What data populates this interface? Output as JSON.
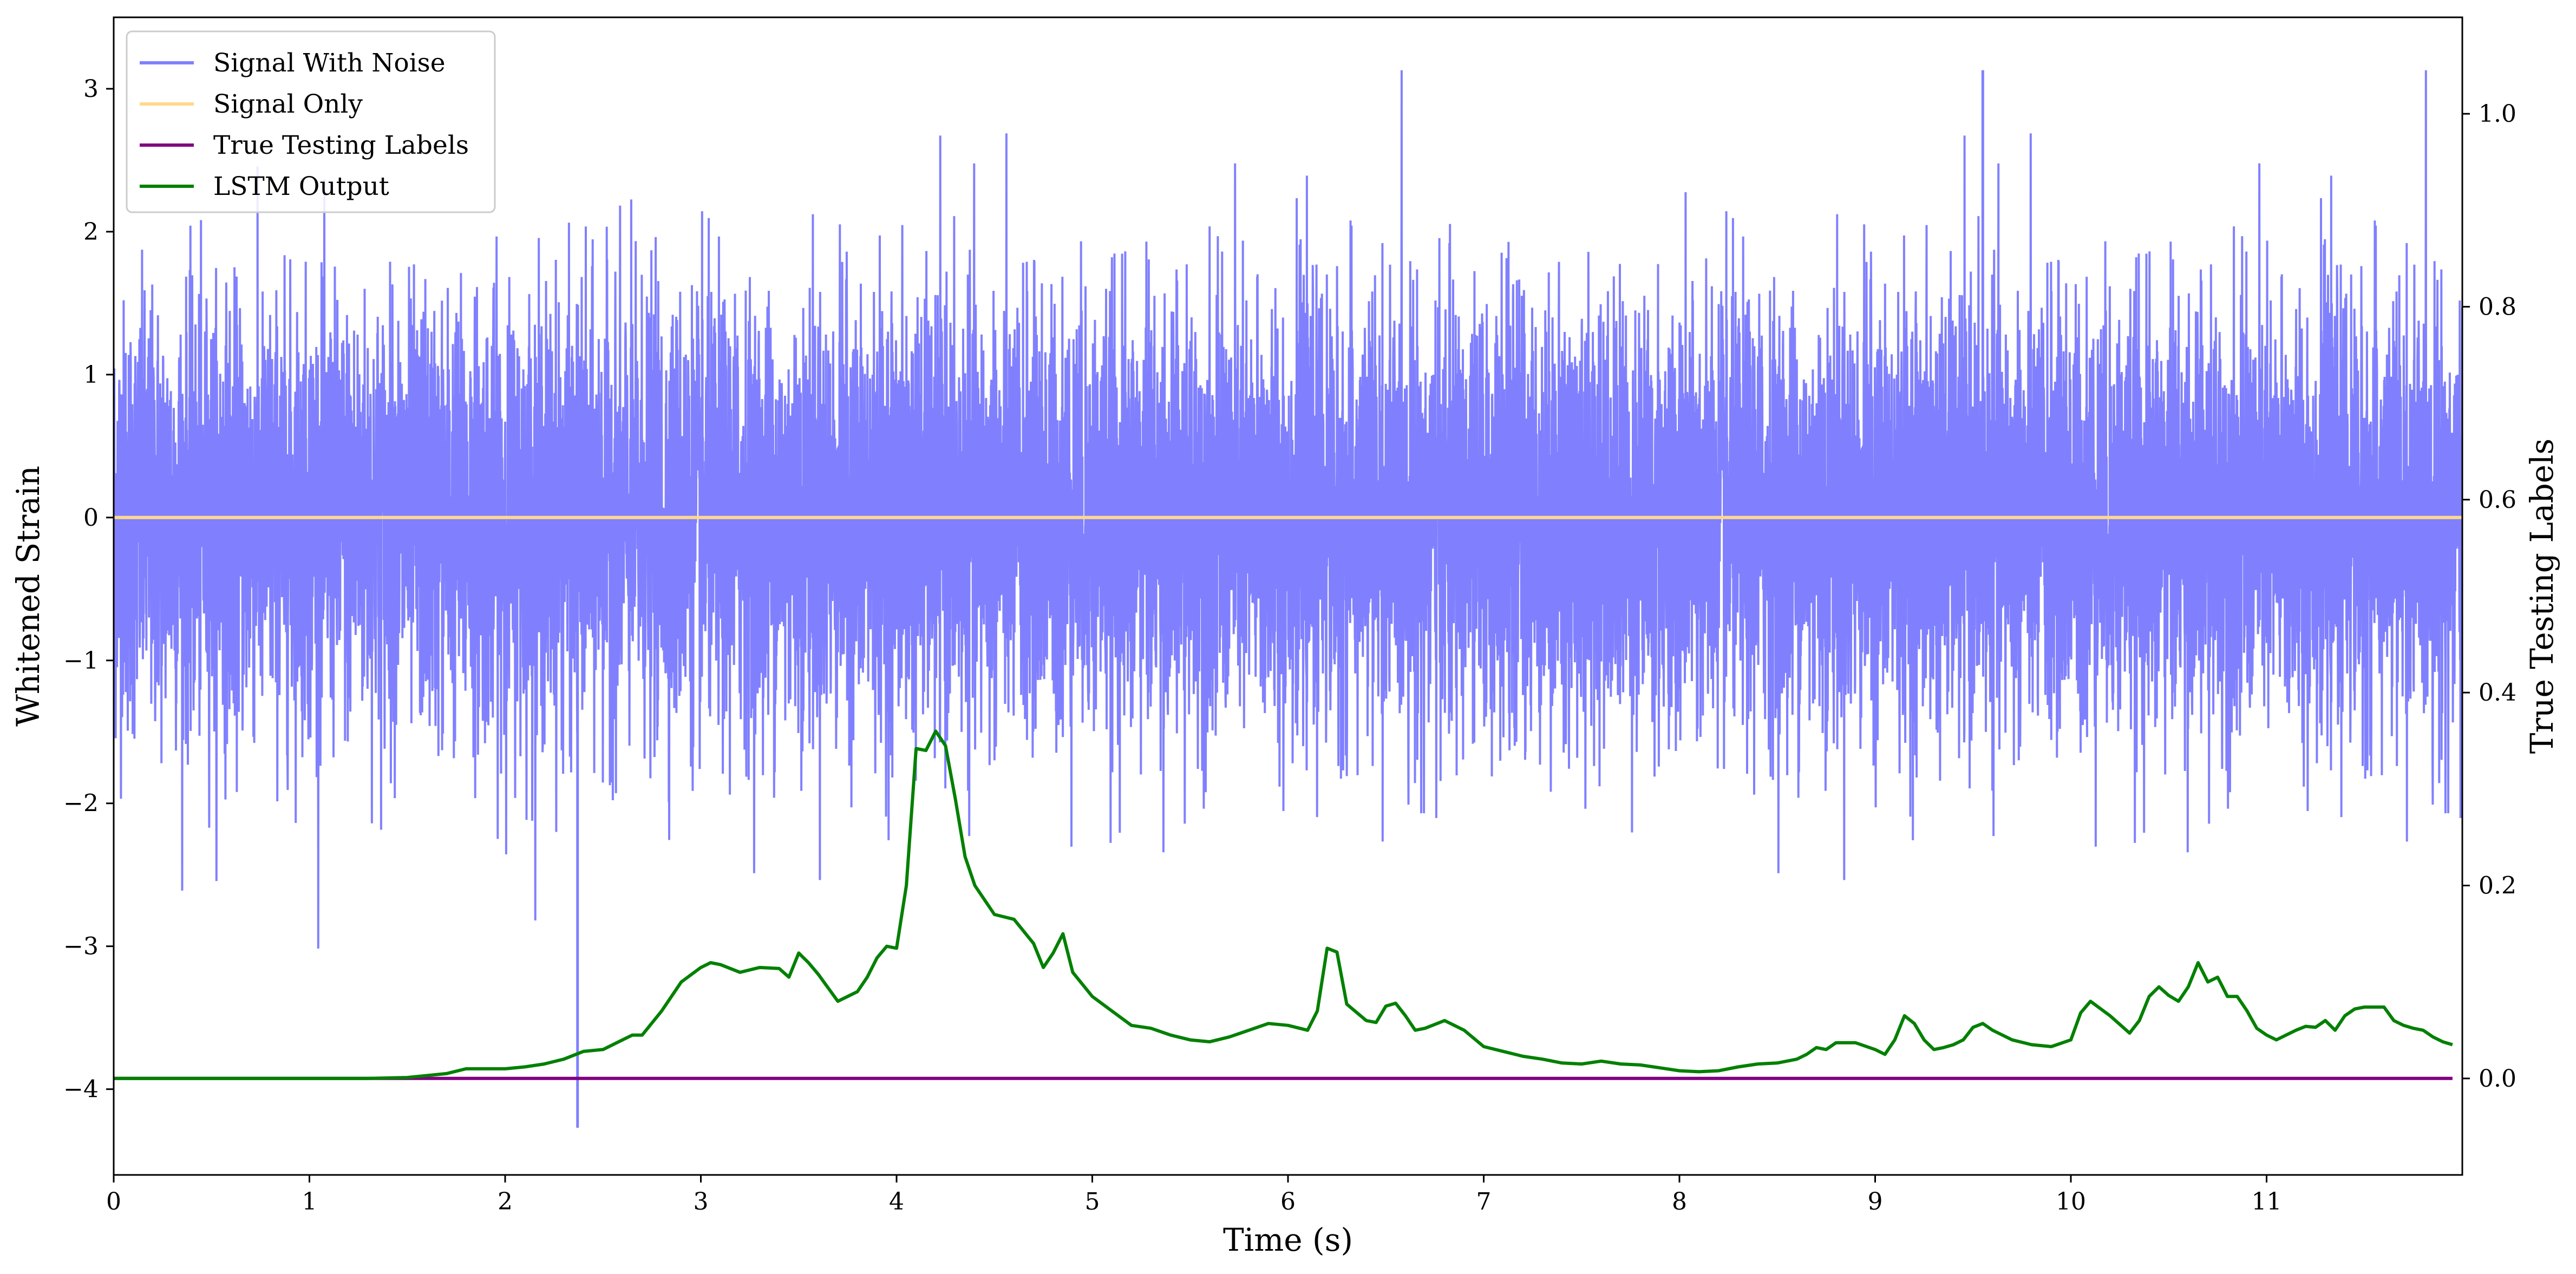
{
  "chart_data": {
    "type": "line",
    "title": "",
    "xlabel": "Time (s)",
    "ylabel_left": "Whitened Strain",
    "ylabel_right": "True Testing Labels",
    "xlim": [
      0,
      12
    ],
    "ylim_left": [
      -4.6,
      3.5
    ],
    "ylim_right": [
      -0.1,
      1.1
    ],
    "xticks": [
      0,
      1,
      2,
      3,
      4,
      5,
      6,
      7,
      8,
      9,
      10,
      11
    ],
    "xtick_labels": [
      "0",
      "1",
      "2",
      "3",
      "4",
      "5",
      "6",
      "7",
      "8",
      "9",
      "10",
      "11"
    ],
    "yticks_left": [
      -4,
      -3,
      -2,
      -1,
      0,
      1,
      2,
      3
    ],
    "ytick_labels_left": [
      "−4",
      "−3",
      "−2",
      "−1",
      "0",
      "1",
      "2",
      "3"
    ],
    "yticks_right": [
      0.0,
      0.2,
      0.4,
      0.6,
      0.8,
      1.0
    ],
    "ytick_labels_right": [
      "0.0",
      "0.2",
      "0.4",
      "0.6",
      "0.8",
      "1.0"
    ],
    "grid": false,
    "legend_position": "top-left",
    "legend": [
      {
        "label": "Signal With Noise",
        "color": "#8080ff"
      },
      {
        "label": "Signal Only",
        "color": "#ffd88a"
      },
      {
        "label": "True Testing Labels",
        "color": "#800080"
      },
      {
        "label": "LSTM Output",
        "color": "#008000"
      }
    ],
    "series": [
      {
        "name": "Signal With Noise",
        "axis": "left",
        "color": "#8080ff",
        "description_kind": "dense_noise",
        "x_range": [
          0,
          12
        ],
        "mean": 0,
        "std": 0.75,
        "min": -4.27,
        "max": 3.13
      },
      {
        "name": "Signal Only",
        "axis": "left",
        "color": "#ffd88a",
        "x": [
          0,
          12
        ],
        "y": [
          0,
          0
        ]
      },
      {
        "name": "True Testing Labels",
        "axis": "right",
        "color": "#800080",
        "x": [
          0,
          11.95
        ],
        "y": [
          0,
          0
        ]
      },
      {
        "name": "LSTM Output",
        "axis": "right",
        "color": "#008000",
        "x": [
          0,
          0.5,
          1.0,
          1.3,
          1.5,
          1.7,
          1.8,
          2.0,
          2.1,
          2.2,
          2.3,
          2.4,
          2.5,
          2.6,
          2.65,
          2.7,
          2.8,
          2.9,
          3.0,
          3.05,
          3.1,
          3.2,
          3.3,
          3.4,
          3.45,
          3.5,
          3.55,
          3.6,
          3.7,
          3.8,
          3.85,
          3.9,
          3.95,
          4.0,
          4.05,
          4.1,
          4.15,
          4.2,
          4.25,
          4.3,
          4.35,
          4.4,
          4.5,
          4.6,
          4.7,
          4.75,
          4.8,
          4.85,
          4.9,
          5.0,
          5.1,
          5.2,
          5.3,
          5.4,
          5.5,
          5.6,
          5.7,
          5.8,
          5.9,
          6.0,
          6.1,
          6.15,
          6.2,
          6.25,
          6.3,
          6.4,
          6.45,
          6.5,
          6.55,
          6.6,
          6.65,
          6.7,
          6.8,
          6.9,
          7.0,
          7.1,
          7.2,
          7.3,
          7.4,
          7.5,
          7.6,
          7.7,
          7.8,
          7.9,
          8.0,
          8.1,
          8.2,
          8.3,
          8.4,
          8.5,
          8.6,
          8.65,
          8.7,
          8.75,
          8.8,
          8.9,
          9.0,
          9.05,
          9.1,
          9.15,
          9.2,
          9.25,
          9.3,
          9.35,
          9.4,
          9.45,
          9.5,
          9.55,
          9.6,
          9.7,
          9.8,
          9.9,
          10.0,
          10.05,
          10.1,
          10.2,
          10.3,
          10.35,
          10.4,
          10.45,
          10.5,
          10.55,
          10.6,
          10.65,
          10.7,
          10.75,
          10.8,
          10.85,
          10.9,
          10.95,
          11.0,
          11.05,
          11.1,
          11.15,
          11.2,
          11.25,
          11.3,
          11.35,
          11.4,
          11.45,
          11.5,
          11.6,
          11.65,
          11.7,
          11.75,
          11.8,
          11.85,
          11.9,
          11.95
        ],
        "y": [
          0.0,
          0.0,
          0.0,
          0.0,
          0.001,
          0.005,
          0.01,
          0.01,
          0.012,
          0.015,
          0.02,
          0.028,
          0.03,
          0.04,
          0.045,
          0.045,
          0.07,
          0.1,
          0.115,
          0.12,
          0.118,
          0.11,
          0.115,
          0.114,
          0.105,
          0.13,
          0.12,
          0.108,
          0.08,
          0.09,
          0.105,
          0.125,
          0.137,
          0.135,
          0.2,
          0.342,
          0.34,
          0.36,
          0.345,
          0.29,
          0.23,
          0.2,
          0.17,
          0.165,
          0.14,
          0.115,
          0.13,
          0.15,
          0.11,
          0.085,
          0.07,
          0.055,
          0.052,
          0.045,
          0.04,
          0.038,
          0.043,
          0.05,
          0.057,
          0.055,
          0.05,
          0.07,
          0.135,
          0.131,
          0.077,
          0.06,
          0.058,
          0.075,
          0.078,
          0.065,
          0.05,
          0.052,
          0.06,
          0.05,
          0.033,
          0.028,
          0.023,
          0.02,
          0.016,
          0.015,
          0.018,
          0.015,
          0.014,
          0.011,
          0.008,
          0.007,
          0.008,
          0.012,
          0.015,
          0.016,
          0.02,
          0.025,
          0.032,
          0.03,
          0.037,
          0.037,
          0.03,
          0.025,
          0.04,
          0.065,
          0.057,
          0.04,
          0.03,
          0.032,
          0.035,
          0.04,
          0.053,
          0.057,
          0.05,
          0.04,
          0.035,
          0.033,
          0.04,
          0.068,
          0.08,
          0.065,
          0.047,
          0.06,
          0.085,
          0.095,
          0.086,
          0.08,
          0.095,
          0.12,
          0.1,
          0.105,
          0.085,
          0.085,
          0.07,
          0.052,
          0.045,
          0.04,
          0.045,
          0.05,
          0.054,
          0.053,
          0.06,
          0.05,
          0.065,
          0.072,
          0.074,
          0.074,
          0.06,
          0.055,
          0.052,
          0.05,
          0.043,
          0.038,
          0.035
        ]
      }
    ]
  }
}
